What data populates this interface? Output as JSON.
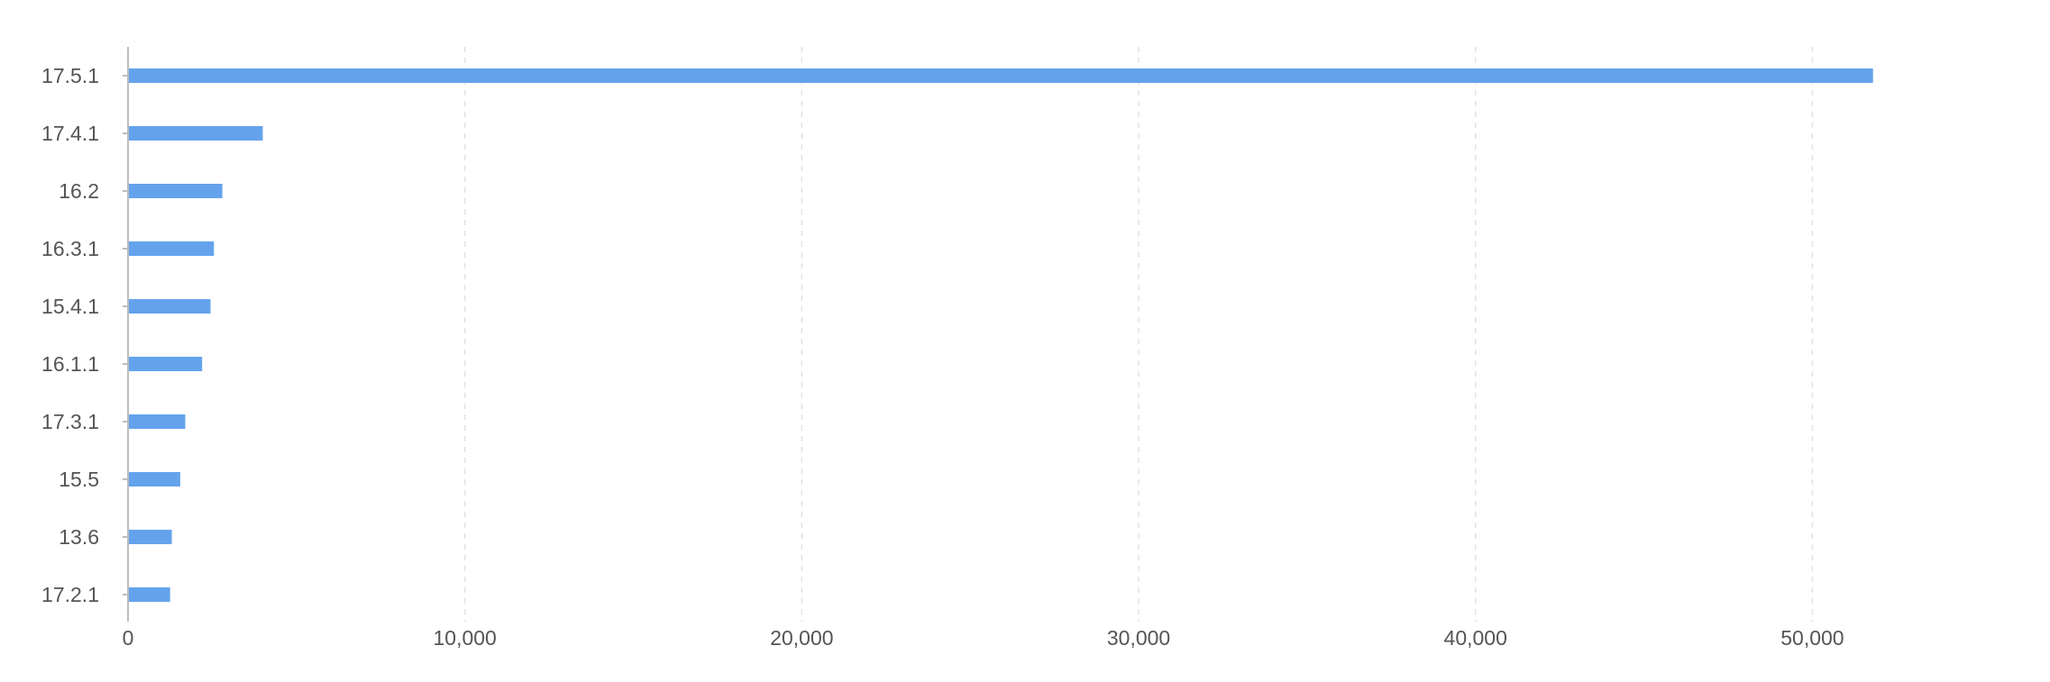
{
  "chart_data": {
    "type": "bar",
    "orientation": "horizontal",
    "categories": [
      "17.5.1",
      "17.4.1",
      "16.2",
      "16.3.1",
      "15.4.1",
      "16.1.1",
      "17.3.1",
      "15.5",
      "13.6",
      "17.2.1"
    ],
    "values": [
      51800,
      4000,
      2800,
      2550,
      2450,
      2200,
      1700,
      1550,
      1300,
      1250
    ],
    "xlim": [
      0,
      57000
    ],
    "xticks": [
      0,
      10000,
      20000,
      30000,
      40000,
      50000
    ],
    "xtick_labels": [
      "0",
      "10,000",
      "20,000",
      "30,000",
      "40,000",
      "50,000"
    ],
    "grid": "vertical dashed",
    "legend": "none",
    "bar_color": "#64a3ec",
    "title": "",
    "xlabel": "",
    "ylabel": ""
  }
}
